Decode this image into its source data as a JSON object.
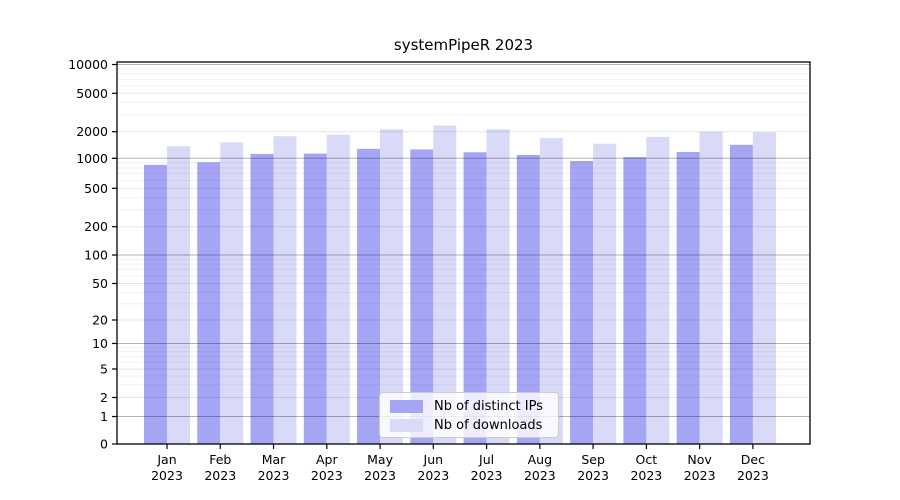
{
  "figure": {
    "title": "systemPipeR 2023"
  },
  "chart_data": {
    "type": "bar",
    "title": "systemPipeR 2023",
    "categories": [
      "Jan",
      "Feb",
      "Mar",
      "Apr",
      "May",
      "Jun",
      "Jul",
      "Aug",
      "Sep",
      "Oct",
      "Nov",
      "Dec"
    ],
    "year_label": "2023",
    "series": [
      {
        "name": "Nb of distinct IPs",
        "color": "#a5a5f5",
        "values": [
          860,
          915,
          1120,
          1130,
          1280,
          1260,
          1170,
          1090,
          940,
          1030,
          1180,
          1420
        ]
      },
      {
        "name": "Nb of downloads",
        "color": "#d9d9f8",
        "values": [
          1370,
          1510,
          1780,
          1850,
          2120,
          2320,
          2120,
          1690,
          1460,
          1750,
          2000,
          1970
        ]
      }
    ],
    "xlabel": "",
    "ylabel": "",
    "yscale": "symlog",
    "yticks": [
      0,
      1,
      2,
      5,
      10,
      20,
      50,
      100,
      200,
      500,
      1000,
      2000,
      5000,
      10000
    ],
    "ylim": [
      0,
      10000
    ],
    "grid": true,
    "legend_position": "lower center"
  }
}
